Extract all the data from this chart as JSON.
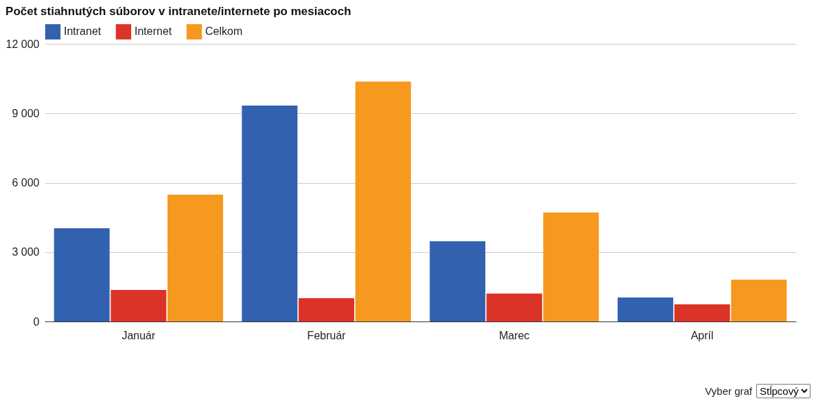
{
  "chart_data": {
    "type": "bar",
    "title": "Počet stiahnutých súborov v intranete/internete po mesiacoch",
    "categories": [
      "Január",
      "Február",
      "Marec",
      "Apríl"
    ],
    "series": [
      {
        "name": "Intranet",
        "color": "#3262af",
        "values": [
          4030,
          9330,
          3470,
          1040
        ]
      },
      {
        "name": "Internet",
        "color": "#dc3328",
        "values": [
          1360,
          1010,
          1210,
          740
        ]
      },
      {
        "name": "Celkom",
        "color": "#f7981f",
        "values": [
          5480,
          10370,
          4710,
          1810
        ]
      }
    ],
    "ylim": [
      0,
      12000
    ],
    "yticks": [
      {
        "value": 0,
        "label": "0"
      },
      {
        "value": 3000,
        "label": "3 000"
      },
      {
        "value": 6000,
        "label": "6 000"
      },
      {
        "value": 9000,
        "label": "9 000"
      },
      {
        "value": 12000,
        "label": "12 000"
      }
    ],
    "grid": "y",
    "legend": "top left",
    "annotations": [
      "Vyber graf",
      "Stĺpcový"
    ]
  }
}
